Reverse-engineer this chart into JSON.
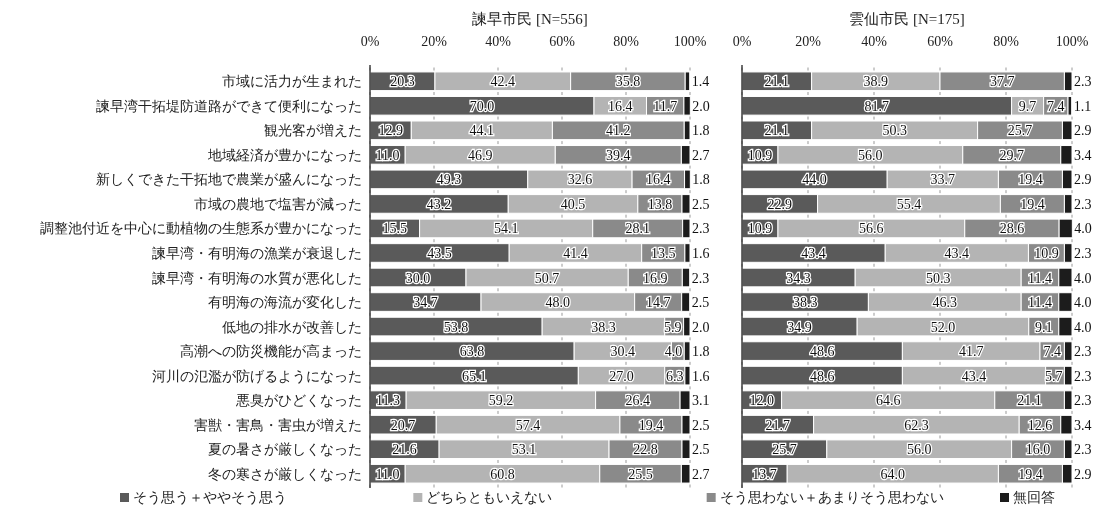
{
  "chart_data": [
    {
      "type": "bar",
      "orientation": "horizontal",
      "stacked": true,
      "title": "諫早市民 [N=556]",
      "grid": "x",
      "legend": "bottom",
      "categories": [
        "市域に活力が生まれた",
        "諫早湾干拓堤防道路ができて便利になった",
        "観光客が増えた",
        "地域経済が豊かになった",
        "新しくできた干拓地で農業が盛んになった",
        "市域の農地で塩害が減った",
        "調整池付近を中心に動植物の生態系が豊かになった",
        "諫早湾・有明海の漁業が衰退した",
        "諫早湾・有明海の水質が悪化した",
        "有明海の海流が変化した",
        "低地の排水が改善した",
        "高潮への防災機能が高まった",
        "河川の氾濫が防げるようになった",
        "悪臭がひどくなった",
        "害獣・害鳥・害虫が増えた",
        "夏の暑さが厳しくなった",
        "冬の寒さが厳しくなった"
      ],
      "xlim": [
        0,
        100
      ],
      "xticks": [
        {
          "value": 0,
          "label": "0%"
        },
        {
          "value": 20,
          "label": "20%"
        },
        {
          "value": 40,
          "label": "40%"
        },
        {
          "value": 60,
          "label": "60%"
        },
        {
          "value": 80,
          "label": "80%"
        },
        {
          "value": 100,
          "label": "100%"
        }
      ],
      "series": [
        {
          "name": "そう思う＋ややそう思う",
          "color": "#5a5a5a",
          "values": [
            20.3,
            70.0,
            12.9,
            11.0,
            49.3,
            43.2,
            15.5,
            43.5,
            30.0,
            34.7,
            53.8,
            63.8,
            65.1,
            11.3,
            20.7,
            21.6,
            11.0
          ],
          "value_labels": [
            "20.3",
            "70.0",
            "12.9",
            "11.0",
            "49.3",
            "43.2",
            "15.5",
            "43.5",
            "30.0",
            "34.7",
            "53.8",
            "63.8",
            "65.1",
            "11.3",
            "20.7",
            "21.6",
            "11.0"
          ]
        },
        {
          "name": "どちらともいえない",
          "color": "#b4b4b4",
          "values": [
            42.4,
            16.4,
            44.1,
            46.9,
            32.6,
            40.5,
            54.1,
            41.4,
            50.7,
            48.0,
            38.3,
            30.4,
            27.0,
            59.2,
            57.4,
            53.1,
            60.8
          ],
          "value_labels": [
            "42.4",
            "16.4",
            "44.1",
            "46.9",
            "32.6",
            "40.5",
            "54.1",
            "41.4",
            "50.7",
            "48.0",
            "38.3",
            "30.4",
            "27.0",
            "59.2",
            "57.4",
            "53.1",
            "60.8"
          ]
        },
        {
          "name": "そう思わない＋あまりそう思わない",
          "color": "#8a8a8a",
          "values": [
            35.8,
            11.7,
            41.2,
            39.4,
            16.4,
            13.8,
            28.1,
            13.5,
            16.9,
            14.7,
            5.9,
            4.0,
            6.3,
            26.4,
            19.4,
            22.8,
            25.5
          ],
          "value_labels": [
            "35.8",
            "11.7",
            "41.2",
            "39.4",
            "16.4",
            "13.8",
            "28.1",
            "13.5",
            "16.9",
            "14.7",
            "5.9",
            "4.0",
            "6.3",
            "26.4",
            "19.4",
            "22.8",
            "25.5"
          ]
        },
        {
          "name": "無回答",
          "color": "#1c1c1c",
          "values": [
            1.4,
            2.0,
            1.8,
            2.7,
            1.8,
            2.5,
            2.3,
            1.6,
            2.3,
            2.5,
            2.0,
            1.8,
            1.6,
            3.1,
            2.5,
            2.5,
            2.7
          ],
          "value_labels": [
            "1.4",
            "2.0",
            "1.8",
            "2.7",
            "1.8",
            "2.5",
            "2.3",
            "1.6",
            "2.3",
            "2.5",
            "2.0",
            "1.8",
            "1.6",
            "3.1",
            "2.5",
            "2.5",
            "2.7"
          ]
        }
      ]
    },
    {
      "type": "bar",
      "orientation": "horizontal",
      "stacked": true,
      "title": "雲仙市民 [N=175]",
      "grid": "x",
      "tick_labels": "x",
      "categories": [
        null,
        null,
        null,
        null,
        null,
        null,
        null,
        null,
        null,
        null,
        null,
        null,
        null,
        null,
        null,
        null,
        null
      ],
      "xlim": [
        0,
        100
      ],
      "xticks": [
        {
          "value": 0,
          "label": "0%"
        },
        {
          "value": 20,
          "label": "20%"
        },
        {
          "value": 40,
          "label": "40%"
        },
        {
          "value": 60,
          "label": "60%"
        },
        {
          "value": 80,
          "label": "80%"
        },
        {
          "value": 100,
          "label": "100%"
        }
      ],
      "series": [
        {
          "color": "#5a5a5a",
          "values": [
            21.1,
            81.7,
            21.1,
            10.9,
            44.0,
            22.9,
            10.9,
            43.4,
            34.3,
            38.3,
            34.9,
            48.6,
            48.6,
            12.0,
            21.7,
            25.7,
            13.7
          ],
          "value_labels": [
            "21.1",
            "81.7",
            "21.1",
            "10.9",
            "44.0",
            "22.9",
            "10.9",
            "43.4",
            "34.3",
            "38.3",
            "34.9",
            "48.6",
            "48.6",
            "12.0",
            "21.7",
            "25.7",
            "13.7"
          ]
        },
        {
          "color": "#b4b4b4",
          "values": [
            38.9,
            9.7,
            50.3,
            56.0,
            33.7,
            55.4,
            56.6,
            43.4,
            50.3,
            46.3,
            52.0,
            41.7,
            43.4,
            64.6,
            62.3,
            56.0,
            64.0
          ],
          "value_labels": [
            "38.9",
            "9.7",
            "50.3",
            "56.0",
            "33.7",
            "55.4",
            "56.6",
            "43.4",
            "50.3",
            "46.3",
            "52.0",
            "41.7",
            "43.4",
            "64.6",
            "62.3",
            "56.0",
            "64.0"
          ]
        },
        {
          "color": "#8a8a8a",
          "values": [
            37.7,
            7.4,
            25.7,
            29.7,
            19.4,
            19.4,
            28.6,
            10.9,
            11.4,
            11.4,
            9.1,
            7.4,
            5.7,
            21.1,
            12.6,
            16.0,
            19.4
          ],
          "value_labels": [
            "37.7",
            "7.4",
            "25.7",
            "29.7",
            "19.4",
            "19.4",
            "28.6",
            "10.9",
            "11.4",
            "11.4",
            "9.1",
            "7.4",
            "5.7",
            "21.1",
            "12.6",
            "16.0",
            "19.4"
          ]
        },
        {
          "color": "#1c1c1c",
          "values": [
            2.3,
            1.1,
            2.9,
            3.4,
            2.9,
            2.3,
            4.0,
            2.3,
            4.0,
            4.0,
            4.0,
            2.3,
            2.3,
            2.3,
            3.4,
            2.3,
            2.9
          ],
          "value_labels": [
            "2.3",
            "1.1",
            "2.9",
            "3.4",
            "2.9",
            "2.3",
            "4.0",
            "2.3",
            "4.0",
            "4.0",
            "4.0",
            "2.3",
            "2.3",
            "2.3",
            "3.4",
            "2.3",
            "2.9"
          ]
        }
      ]
    }
  ]
}
